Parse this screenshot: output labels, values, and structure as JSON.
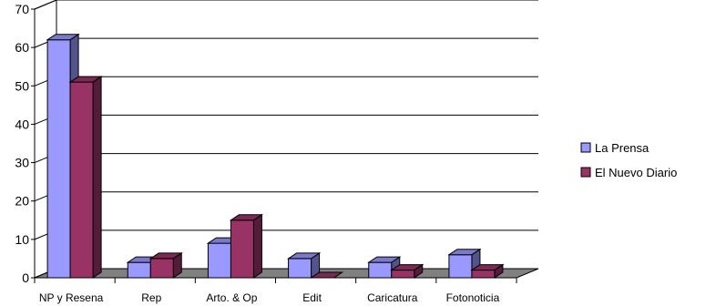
{
  "chart_data": {
    "type": "bar",
    "style": "3d-clustered-column",
    "categories": [
      "NP y Resena",
      "Rep",
      "Arto. & Op",
      "Edit",
      "Caricatura",
      "Fotonoticia"
    ],
    "series": [
      {
        "name": "La Prensa",
        "values": [
          62,
          4,
          9,
          5,
          4,
          6
        ],
        "color": "#9999ff"
      },
      {
        "name": "El Nuevo Diario",
        "values": [
          51,
          5,
          15,
          0,
          2,
          2
        ],
        "color": "#993366"
      }
    ],
    "ylim": [
      0,
      70
    ],
    "yticks": [
      0,
      10,
      20,
      30,
      40,
      50,
      60,
      70
    ],
    "grid": true,
    "legend_position": "right"
  }
}
